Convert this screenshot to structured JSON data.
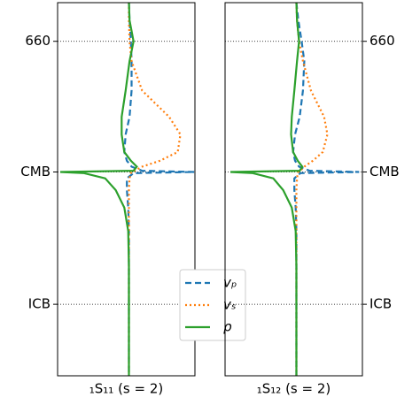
{
  "chart_data": [
    {
      "type": "line",
      "title": "₁S₁₁ (s = 2)",
      "ytick_side": "left",
      "legend": true,
      "grid": true,
      "xlim": [
        -1.08,
        1
      ],
      "ylim": [
        0,
        6371
      ],
      "yticks": [
        660,
        {
          "value": 2891,
          "label": "CMB"
        },
        {
          "value": 5150,
          "label": "ICB"
        }
      ],
      "y": [
        0,
        300,
        660,
        1000,
        1500,
        1950,
        2250,
        2550,
        2700,
        2800,
        2870,
        2891,
        2910,
        3000,
        3200,
        3500,
        3900,
        4500,
        5150,
        5800,
        6371
      ],
      "series": [
        {
          "name": "vₚ",
          "color": "#1f77b4",
          "dash": "dashed",
          "values": [
            0,
            0.01,
            0.03,
            0.04,
            0.04,
            0.01,
            -0.05,
            -0.07,
            -0.03,
            0.04,
            0.2,
            0.99,
            0.07,
            -0.03,
            -0.03,
            -0.01,
            0,
            0,
            0,
            0,
            0
          ]
        },
        {
          "name": "vₛ",
          "color": "#ff7f0e",
          "dash": "dotted",
          "values": [
            0,
            0,
            0.01,
            0.04,
            0.2,
            0.61,
            0.78,
            0.74,
            0.47,
            0.2,
            0.09,
            0.04,
            0.03,
            0.01,
            0,
            0,
            0,
            0,
            0,
            0,
            0
          ]
        },
        {
          "name": "ρ",
          "color": "#2ca02c",
          "dash": "solid",
          "values": [
            0,
            0.01,
            0.07,
            0.01,
            -0.05,
            -0.11,
            -0.11,
            -0.07,
            0.03,
            0.12,
            0.07,
            -1.04,
            -0.68,
            -0.36,
            -0.2,
            -0.07,
            -0.01,
            0,
            0,
            0,
            0
          ]
        }
      ]
    },
    {
      "type": "line",
      "title": "₁S₁₂ (s = 2)",
      "ytick_side": "right",
      "legend": false,
      "grid": true,
      "xlim": [
        -1.08,
        1
      ],
      "ylim": [
        0,
        6371
      ],
      "yticks": [
        660,
        {
          "value": 2891,
          "label": "CMB"
        },
        {
          "value": 5150,
          "label": "ICB"
        }
      ],
      "y": [
        0,
        300,
        660,
        1000,
        1500,
        1950,
        2250,
        2550,
        2700,
        2800,
        2870,
        2891,
        2910,
        3000,
        3200,
        3500,
        3900,
        4500,
        5150,
        5800,
        6371
      ],
      "series": [
        {
          "name": "vₚ",
          "color": "#1f77b4",
          "dash": "dashed",
          "values": [
            0,
            0.03,
            0.08,
            0.12,
            0.1,
            0.05,
            -0.02,
            -0.05,
            -0.02,
            0.04,
            0.2,
            0.95,
            0.06,
            -0.03,
            -0.03,
            -0.01,
            0,
            0,
            0,
            0,
            0
          ]
        },
        {
          "name": "vₛ",
          "color": "#ff7f0e",
          "dash": "dotted",
          "values": [
            0,
            0.01,
            0.04,
            0.1,
            0.22,
            0.42,
            0.47,
            0.4,
            0.25,
            0.12,
            0.06,
            0.03,
            0.02,
            0.01,
            0,
            0,
            0,
            0,
            0,
            0,
            0
          ]
        },
        {
          "name": "ρ",
          "color": "#2ca02c",
          "dash": "solid",
          "values": [
            0,
            0.01,
            0.04,
            0.01,
            -0.03,
            -0.07,
            -0.08,
            -0.05,
            0.02,
            0.09,
            0.05,
            -1.0,
            -0.66,
            -0.35,
            -0.2,
            -0.07,
            -0.01,
            0,
            0,
            0,
            0
          ]
        }
      ]
    }
  ]
}
